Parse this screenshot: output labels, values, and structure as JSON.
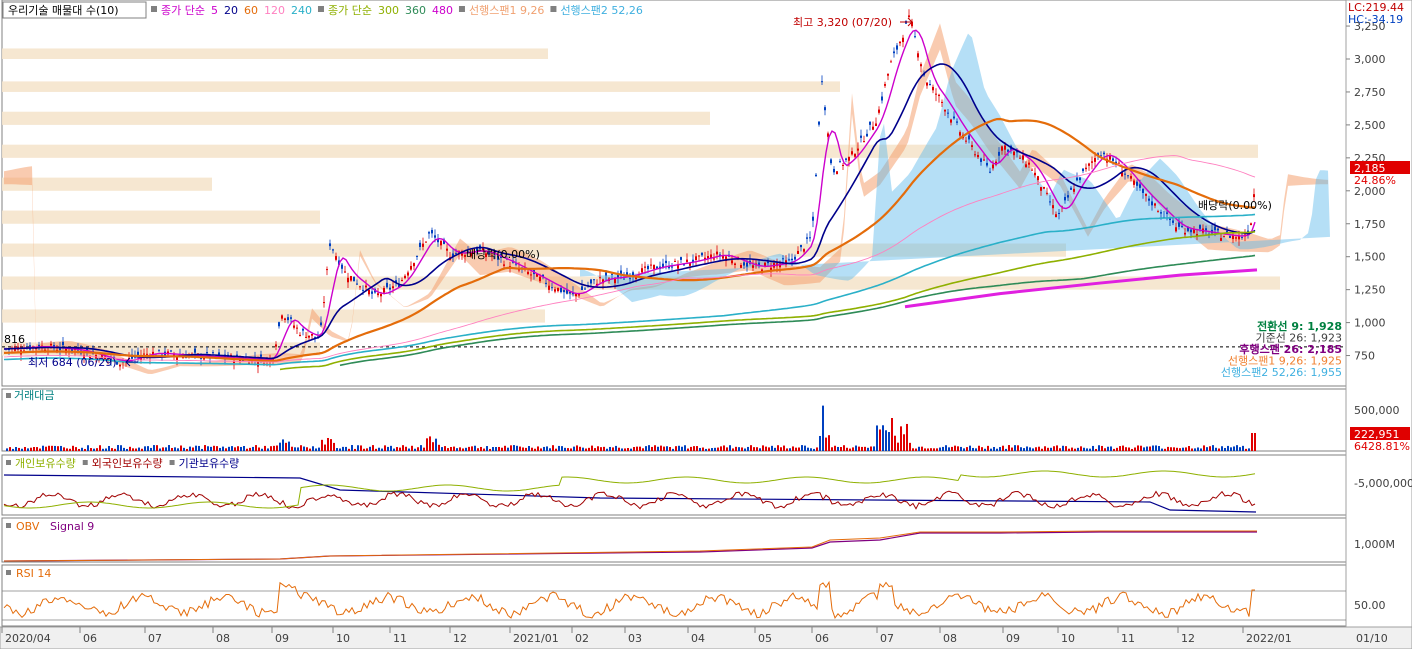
{
  "chart_data": [
    {
      "type": "candlestick",
      "title": "우리기술 매물대 수(10)",
      "legend": [
        {
          "text": "종가 단순",
          "color": "#cc00cc"
        },
        {
          "text": "5",
          "color": "#cc00cc"
        },
        {
          "text": "20",
          "color": "#00008b"
        },
        {
          "text": "60",
          "color": "#e46c0a"
        },
        {
          "text": "120",
          "color": "#ff80c0"
        },
        {
          "text": "240",
          "color": "#2ab0c8"
        },
        {
          "text": "종가 단순",
          "color": "#8fb000"
        },
        {
          "text": "300",
          "color": "#8fb000"
        },
        {
          "text": "360",
          "color": "#2e8b57"
        },
        {
          "text": "480",
          "color": "#cc00cc"
        },
        {
          "text": "선행스팬1 9,26",
          "color": "#f0a070"
        },
        {
          "text": "선행스팬2 52,26",
          "color": "#40b0e0"
        }
      ],
      "ylim": [
        600,
        3350
      ],
      "yticks": [
        750,
        1000,
        1250,
        1500,
        1750,
        2000,
        2250,
        2500,
        2750,
        3000,
        3250
      ],
      "ytick_labels": [
        "750",
        "1,000",
        "1,250",
        "1,500",
        "1,750",
        "2,000",
        "2,250",
        "2,500",
        "2,750",
        "3,000",
        "3,250"
      ],
      "x_labels": [
        "2020/04",
        "06",
        "07",
        "08",
        "09",
        "10",
        "11",
        "12",
        "2021/01",
        "02",
        "03",
        "04",
        "05",
        "06",
        "07",
        "08",
        "09",
        "10",
        "11",
        "12",
        "2022/01"
      ],
      "x_label_right": "01/10",
      "close_points": [
        [
          "2020-04",
          800
        ],
        [
          "2020-05",
          820
        ],
        [
          "2020-06",
          790
        ],
        [
          "2020-06-29",
          684
        ],
        [
          "2020-07",
          760
        ],
        [
          "2020-08",
          740
        ],
        [
          "2020-09",
          720
        ],
        [
          "2020-09-10",
          1080
        ],
        [
          "2020-09-25",
          860
        ],
        [
          "2020-10-01",
          1600
        ],
        [
          "2020-10-15",
          1400
        ],
        [
          "2020-11",
          1200
        ],
        [
          "2020-11-20",
          1300
        ],
        [
          "2020-12-01",
          1700
        ],
        [
          "2020-12-10",
          1550
        ],
        [
          "2021-01",
          1450
        ],
        [
          "2021-02",
          1200
        ],
        [
          "2021-03",
          1350
        ],
        [
          "2021-04",
          1450
        ],
        [
          "2021-05",
          1420
        ],
        [
          "2021-05-25",
          1500
        ],
        [
          "2021-06",
          1650
        ],
        [
          "2021-06-05",
          2850
        ],
        [
          "2021-06-10",
          2100
        ],
        [
          "2021-06-20",
          2300
        ],
        [
          "2021-07",
          2600
        ],
        [
          "2021-07-10",
          2900
        ],
        [
          "2021-07-20",
          3320
        ],
        [
          "2021-08",
          2700
        ],
        [
          "2021-08-15",
          2450
        ],
        [
          "2021-09",
          2150
        ],
        [
          "2021-09-15",
          2350
        ],
        [
          "2021-10",
          2100
        ],
        [
          "2021-10-10",
          1800
        ],
        [
          "2021-10-25",
          2100
        ],
        [
          "2021-11",
          2300
        ],
        [
          "2021-11-15",
          2150
        ],
        [
          "2021-12",
          1700
        ],
        [
          "2021-12-15",
          1650
        ],
        [
          "2022-01",
          1700
        ],
        [
          "2022-01-10",
          2185
        ]
      ],
      "annotations": [
        {
          "text": "최고 3,320 (07/20)",
          "color": "#c00000"
        },
        {
          "text": "최저 684 (06/29)",
          "color": "#00008b"
        },
        {
          "text": "배당락(0.00%)",
          "color": "#000000"
        },
        {
          "text": "배당락(0.00%)",
          "color": "#000000"
        },
        {
          "text": "816",
          "color": "#000000"
        }
      ],
      "ichimoku_values": [
        {
          "text": "전환선 9: 1,928",
          "color": "#008040"
        },
        {
          "text": "기준선 26: 1,923",
          "color": "#404040"
        },
        {
          "text": "후행스팬 26: 2,185",
          "color": "#800080"
        },
        {
          "text": "선행스팬1 9,26: 1,925",
          "color": "#f08030"
        },
        {
          "text": "선행스팬2 52,26: 1,955",
          "color": "#40b0e0"
        }
      ],
      "right_labels": {
        "lc": "LC:219.44",
        "hc": "HC:-34.19",
        "last_price": "2,185",
        "change": "24.86%"
      }
    },
    {
      "type": "bar",
      "title": "거래대금",
      "ytick_labels": [
        "500,000"
      ],
      "last_value": "222,951",
      "last_change": "6428.81%",
      "series": [
        {
          "name": "거래대금",
          "color": "#c00000"
        }
      ]
    },
    {
      "type": "line",
      "series": [
        {
          "name": "개인보유수량",
          "color": "#8fb000"
        },
        {
          "name": "외국인보유수량",
          "color": "#a00000"
        },
        {
          "name": "기관보유수량",
          "color": "#00008b"
        }
      ],
      "ytick_labels": [
        "-5,000,000"
      ]
    },
    {
      "type": "line",
      "series": [
        {
          "name": "OBV",
          "color": "#e46c0a"
        },
        {
          "name": "Signal 9",
          "color": "#800080"
        }
      ],
      "ytick_labels": [
        "1,000M"
      ]
    },
    {
      "type": "line",
      "title": "RSI 14",
      "ytick_labels": [
        "50.00"
      ],
      "series": [
        {
          "name": "RSI 14",
          "color": "#e46c0a"
        }
      ]
    }
  ]
}
